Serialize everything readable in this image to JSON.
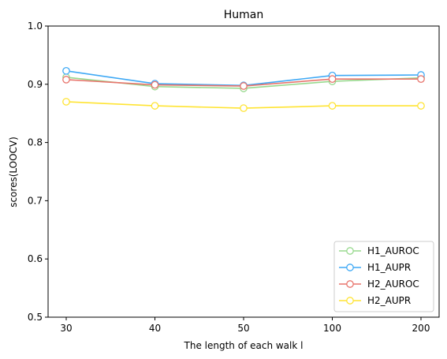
{
  "chart_data": {
    "type": "line",
    "title": "Human",
    "xlabel": "The length of each walk l",
    "ylabel": "scores(LOOCV)",
    "categories": [
      "30",
      "40",
      "50",
      "100",
      "200"
    ],
    "ylim": [
      0.5,
      1.0
    ],
    "yticks": [
      "0.5",
      "0.6",
      "0.7",
      "0.8",
      "0.9",
      "1.0"
    ],
    "grid": false,
    "legend_position": "lower-right",
    "series": [
      {
        "name": "H1_AUROC",
        "color": "#98d98e",
        "values": [
          0.912,
          0.896,
          0.893,
          0.905,
          0.911
        ]
      },
      {
        "name": "H1_AUPR",
        "color": "#3fa9f5",
        "values": [
          0.923,
          0.901,
          0.898,
          0.915,
          0.916
        ]
      },
      {
        "name": "H2_AUROC",
        "color": "#e8756d",
        "values": [
          0.908,
          0.899,
          0.897,
          0.909,
          0.909
        ]
      },
      {
        "name": "H2_AUPR",
        "color": "#ffe433",
        "values": [
          0.87,
          0.863,
          0.859,
          0.863,
          0.863
        ]
      }
    ]
  }
}
